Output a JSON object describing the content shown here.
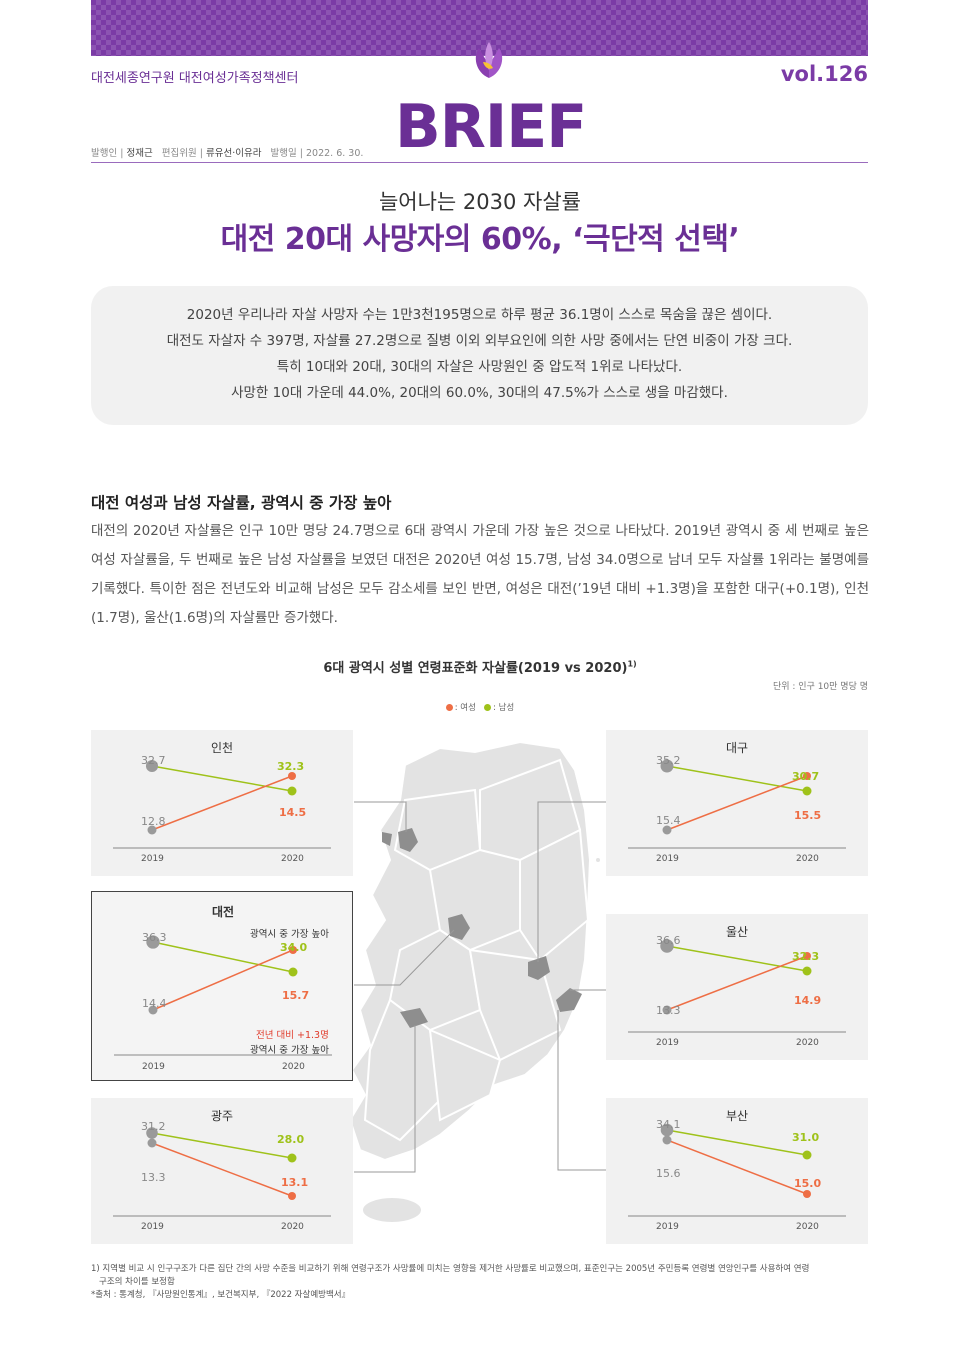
{
  "header": {
    "org": "대전세종연구원 대전여성가족정책센터",
    "vol": "vol.126",
    "brand": "BRIEF",
    "meta_publisher_label": "발행인 |",
    "meta_publisher": "정재근",
    "meta_editor_label": "편집위원 |",
    "meta_editor": "류유선·이유라",
    "meta_date_label": "발행일 | 2022. 6. 30."
  },
  "headline": {
    "subtitle": "늘어나는 2030 자살률",
    "title": "대전 20대 사망자의 60%, ‘극단적 선택’"
  },
  "summary": [
    "2020년 우리나라 자살 사망자 수는 1만3천195명으로 하루 평균 36.1명이 스스로 목숨을 끊은 셈이다.",
    "대전도 자살자 수 397명, 자살률 27.2명으로 질병 이외 외부요인에 의한 사망 중에서는 단연 비중이 가장 크다.",
    "특히 10대와 20대, 30대의 자살은 사망원인 중 압도적 1위로 나타났다.",
    "사망한 10대 가운데 44.0%, 20대의 60.0%, 30대의 47.5%가 스스로 생을 마감했다."
  ],
  "section": {
    "heading": "대전 여성과 남성 자살률, 광역시 중 가장 높아",
    "body": "대전의 2020년 자살률은 인구 10만 명당 24.7명으로 6대 광역시 가운데 가장 높은 것으로 나타났다. 2019년 광역시 중 세 번째로 높은 여성 자살률을, 두 번째로 높은 남성 자살률을 보였던 대전은 2020년 여성 15.7명, 남성 34.0명으로 남녀 모두 자살률 1위라는 불명예를 기록했다. 특이한 점은 전년도와 비교해 남성은 모두 감소세를 보인 반면, 여성은 대전(’19년 대비 +1.3명)을 포함한 대구(+0.1명), 인천(1.7명), 울산(1.6명)의 자살률만 증가했다."
  },
  "chart": {
    "title": "6대 광역시 성별 연령표준화 자살률(2019 vs 2020)",
    "title_sup": "1)",
    "unit": "단위 : 인구 10만 명당 명",
    "legend_women": ": 여성",
    "legend_men": ": 남성",
    "year_2019": "2019",
    "year_2020": "2020"
  },
  "colors": {
    "purple": "#6a2f95",
    "women": "#ee6e45",
    "men": "#9fc21a",
    "gray": "#9a9a9a"
  },
  "chart_data": {
    "type": "line",
    "title": "6대 광역시 성별 연령표준화 자살률(2019 vs 2020)",
    "x": [
      "2019",
      "2020"
    ],
    "cities": [
      {
        "name": "인천",
        "men": [
          32.7,
          32.3
        ],
        "women": [
          12.8,
          14.5
        ]
      },
      {
        "name": "대전",
        "men": [
          36.3,
          34.0
        ],
        "women": [
          14.4,
          15.7
        ],
        "note_men": "광역시 중 가장 높아",
        "note_women_change": "전년 대비 +1.3명",
        "note_women": "광역시 중 가장 높아"
      },
      {
        "name": "광주",
        "men": [
          31.2,
          28.0
        ],
        "women": [
          13.3,
          13.1
        ]
      },
      {
        "name": "대구",
        "men": [
          35.2,
          30.7
        ],
        "women": [
          15.4,
          15.5
        ]
      },
      {
        "name": "울산",
        "men": [
          36.6,
          32.3
        ],
        "women": [
          13.3,
          14.9
        ]
      },
      {
        "name": "부산",
        "men": [
          34.1,
          31.0
        ],
        "women": [
          15.6,
          15.0
        ]
      }
    ]
  },
  "footnotes": [
    "1) 지역별 비교 시 인구구조가 다른 집단 간의 사망 수준을 비교하기 위해 연령구조가 사망률에 미치는 영향을 제거한 사망률로 비교했으며, 표준인구는 2005년 주민등록 연령별 연앙인구를 사용하여 연령",
    "구조의 차이를 보정함",
    "*출처 : 통계청, 『사망원인통계』, 보건복지부, 『2022 자살예방백서』"
  ]
}
